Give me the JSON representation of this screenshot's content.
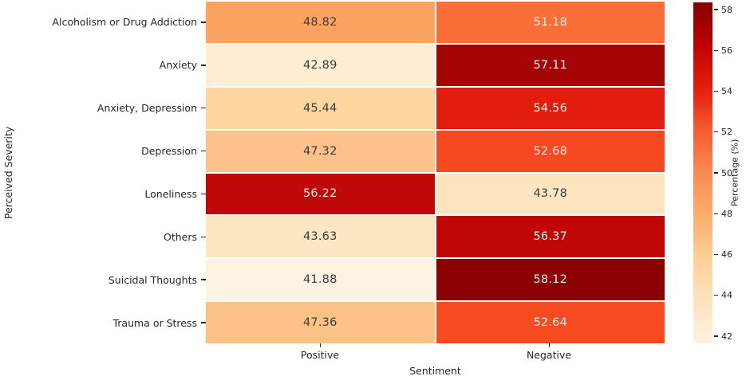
{
  "chart_data": {
    "type": "heatmap",
    "xlabel": "Sentiment",
    "ylabel": "Perceived Severity",
    "columns": [
      "Positive",
      "Negative"
    ],
    "categories": [
      "Alcoholism or Drug Addiction",
      "Anxiety",
      "Anxiety, Depression",
      "Depression",
      "Loneliness",
      "Others",
      "Suicidal Thoughts",
      "Trauma or Stress"
    ],
    "values": [
      [
        48.82,
        51.18
      ],
      [
        42.89,
        57.11
      ],
      [
        45.44,
        54.56
      ],
      [
        47.32,
        52.68
      ],
      [
        56.22,
        43.78
      ],
      [
        43.63,
        56.37
      ],
      [
        41.88,
        58.12
      ],
      [
        47.36,
        52.64
      ]
    ],
    "value_range": [
      41.88,
      58.12
    ],
    "grid_line_color": "#ffffff",
    "rows": [
      {
        "label": "Alcoholism or Drug Addiction",
        "cells": [
          {
            "value": "48.82",
            "bg": "#fca45f",
            "fg": "#3d3d3d"
          },
          {
            "value": "51.18",
            "bg": "#fc6e38",
            "fg": "#f7f2ee"
          }
        ]
      },
      {
        "label": "Anxiety",
        "cells": [
          {
            "value": "42.89",
            "bg": "#fdeed4",
            "fg": "#3d3d3d"
          },
          {
            "value": "57.11",
            "bg": "#a50505",
            "fg": "#f7f2ee"
          }
        ]
      },
      {
        "label": "Anxiety, Depression",
        "cells": [
          {
            "value": "45.44",
            "bg": "#fdd79f",
            "fg": "#3d3d3d"
          },
          {
            "value": "54.56",
            "bg": "#e31d0e",
            "fg": "#f7f2ee"
          }
        ]
      },
      {
        "label": "Depression",
        "cells": [
          {
            "value": "47.32",
            "bg": "#fdc289",
            "fg": "#3d3d3d"
          },
          {
            "value": "52.68",
            "bg": "#f74920",
            "fg": "#f7f2ee"
          }
        ]
      },
      {
        "label": "Loneliness",
        "cells": [
          {
            "value": "56.22",
            "bg": "#c00808",
            "fg": "#f7f2ee"
          },
          {
            "value": "43.78",
            "bg": "#fde5c0",
            "fg": "#3d3d3d"
          }
        ]
      },
      {
        "label": "Others",
        "cells": [
          {
            "value": "43.63",
            "bg": "#fde7c3",
            "fg": "#3d3d3d"
          },
          {
            "value": "56.37",
            "bg": "#c10606",
            "fg": "#f7f2ee"
          }
        ]
      },
      {
        "label": "Suicidal Thoughts",
        "cells": [
          {
            "value": "41.88",
            "bg": "#fdf3e3",
            "fg": "#3d3d3d"
          },
          {
            "value": "58.12",
            "bg": "#8b0000",
            "fg": "#f2e6e1"
          }
        ]
      },
      {
        "label": "Trauma or Stress",
        "cells": [
          {
            "value": "47.36",
            "bg": "#fcc187",
            "fg": "#3d3d3d"
          },
          {
            "value": "52.64",
            "bg": "#f84a21",
            "fg": "#f7f2ee"
          }
        ]
      }
    ],
    "colorbar": {
      "label": "Percentage (%)",
      "ticks": [
        "58",
        "56",
        "54",
        "52",
        "50",
        "48",
        "46",
        "44",
        "42"
      ],
      "gradient_top_to_bottom": [
        "#850000",
        "#bd0300",
        "#e41c0c",
        "#f55b31",
        "#fc8a54",
        "#fcae6d",
        "#fdcf97",
        "#fde3bd",
        "#fdf3e0"
      ]
    }
  }
}
